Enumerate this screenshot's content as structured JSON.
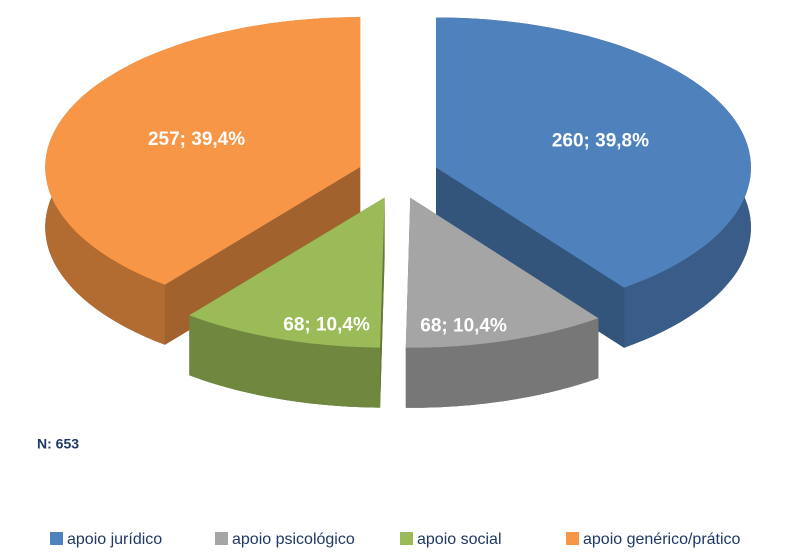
{
  "chart_data": {
    "type": "pie3d",
    "categories": [
      "apoio jurídico",
      "apoio psicológico",
      "apoio social",
      "apoio genérico/prático"
    ],
    "values": [
      260,
      68,
      68,
      257
    ],
    "value_labels": [
      "260; 39,8%",
      "68; 10,4%",
      "68; 10,4%",
      "257; 39,4%"
    ],
    "colors": [
      "#4f81bd",
      "#a5a5a5",
      "#9bbb59",
      "#f79646"
    ],
    "annotation": "N: 653",
    "legend": "bottom"
  }
}
